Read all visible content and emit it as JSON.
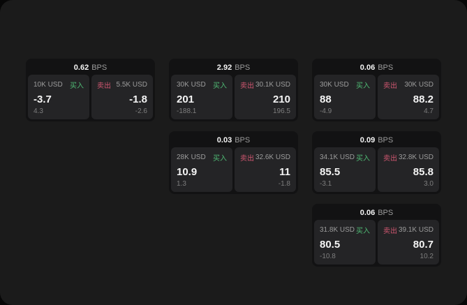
{
  "colors": {
    "page_bg": "#070707",
    "container_bg": "#1b1b1b",
    "card_bg": "#121213",
    "panel_bg": "#242426",
    "buy_green": "#4fba74",
    "sell_red": "#cf5670",
    "text_primary": "#f4f4f4",
    "text_muted": "#9c9c9c",
    "text_dim": "#7e7e7e"
  },
  "labels": {
    "bps": "BPS",
    "buy": "买入",
    "sell": "卖出"
  },
  "cards": [
    {
      "bps": "0.62",
      "buy": {
        "size": "10K USD",
        "value": "-3.7",
        "sub": "4.3"
      },
      "sell": {
        "size": "5.5K USD",
        "value": "-1.8",
        "sub": "-2.6"
      }
    },
    {
      "bps": "2.92",
      "buy": {
        "size": "30K USD",
        "value": "201",
        "sub": "-188.1"
      },
      "sell": {
        "size": "30.1K USD",
        "value": "210",
        "sub": "196.5"
      }
    },
    {
      "bps": "0.06",
      "buy": {
        "size": "30K USD",
        "value": "88",
        "sub": "-4.9"
      },
      "sell": {
        "size": "30K USD",
        "value": "88.2",
        "sub": "4.7"
      }
    },
    {
      "bps": "0.03",
      "buy": {
        "size": "28K USD",
        "value": "10.9",
        "sub": "1.3"
      },
      "sell": {
        "size": "32.6K USD",
        "value": "11",
        "sub": "-1.8"
      }
    },
    {
      "bps": "0.09",
      "buy": {
        "size": "34.1K USD",
        "value": "85.5",
        "sub": "-3.1"
      },
      "sell": {
        "size": "32.8K USD",
        "value": "85.8",
        "sub": "3.0"
      }
    },
    {
      "bps": "0.06",
      "buy": {
        "size": "31.8K USD",
        "value": "80.5",
        "sub": "-10.8"
      },
      "sell": {
        "size": "39.1K USD",
        "value": "80.7",
        "sub": "10.2"
      }
    }
  ]
}
